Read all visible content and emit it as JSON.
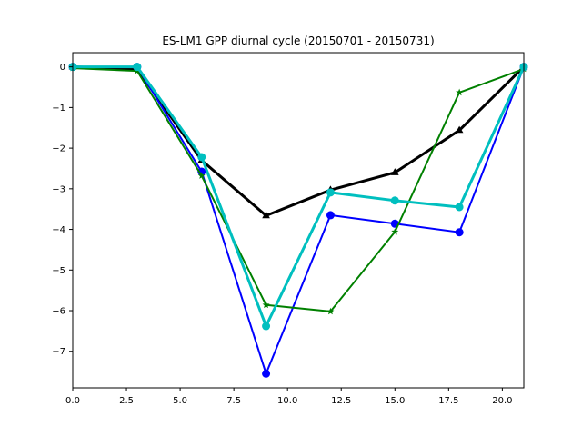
{
  "chart_data": {
    "type": "line",
    "title": "ES-LM1 GPP diurnal cycle (20150701 - 20150731)",
    "xlabel": "",
    "ylabel": "",
    "xlim": [
      0,
      21
    ],
    "ylim": [
      -7.9,
      0.35
    ],
    "xticks": [
      0,
      2.5,
      5,
      7.5,
      10,
      12.5,
      15,
      17.5,
      20
    ],
    "xtick_labels": [
      "0.0",
      "2.5",
      "5.0",
      "7.5",
      "10.0",
      "12.5",
      "15.0",
      "17.5",
      "20.0"
    ],
    "yticks": [
      0,
      -1,
      -2,
      -3,
      -4,
      -5,
      -6,
      -7
    ],
    "ytick_labels": [
      "0",
      "−1",
      "−2",
      "−3",
      "−4",
      "−5",
      "−6",
      "−7"
    ],
    "grid": false,
    "legend": "none",
    "x": [
      0,
      3,
      6,
      9,
      12,
      15,
      18,
      21
    ],
    "series": [
      {
        "color": "#000000",
        "marker": "triangle",
        "width": 3,
        "values": [
          0.0,
          -0.05,
          -2.3,
          -3.66,
          -3.03,
          -2.6,
          -1.56,
          0.0
        ]
      },
      {
        "color": "#0000ff",
        "marker": "circle",
        "width": 2,
        "values": [
          0.0,
          0.0,
          -2.58,
          -7.55,
          -3.65,
          -3.86,
          -4.07,
          0.0
        ]
      },
      {
        "color": "#008000",
        "marker": "star",
        "width": 2,
        "values": [
          -0.03,
          -0.1,
          -2.68,
          -5.86,
          -6.02,
          -4.06,
          -0.63,
          -0.05
        ]
      },
      {
        "color": "#00bfbf",
        "marker": "circle",
        "width": 3,
        "values": [
          0.0,
          0.0,
          -2.22,
          -6.38,
          -3.09,
          -3.29,
          -3.45,
          0.0
        ]
      }
    ]
  }
}
